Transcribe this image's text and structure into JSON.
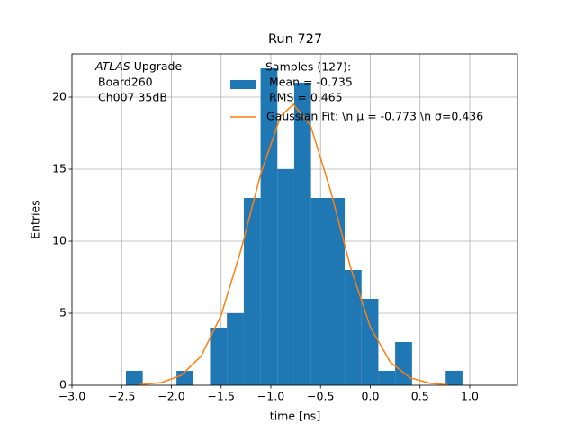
{
  "chart_data": {
    "type": "histogram",
    "title": "Run 727",
    "xlabel": "time [ns]",
    "ylabel": "Entries",
    "bins": [
      -2.457,
      -2.288,
      -2.119,
      -1.949,
      -1.78,
      -1.611,
      -1.442,
      -1.272,
      -1.103,
      -0.934,
      -0.765,
      -0.596,
      -0.426,
      -0.257,
      -0.088,
      0.081,
      0.25,
      0.42,
      0.589,
      0.758,
      0.927
    ],
    "values": [
      1,
      0,
      0,
      1,
      0,
      4,
      5,
      13,
      22,
      15,
      21,
      13,
      13,
      8,
      6,
      1,
      3,
      0,
      0,
      1
    ],
    "name": "Samples (127):",
    "details": [
      "Mean = -0.735",
      "RMS = 0.465"
    ],
    "color": "#1f77b4",
    "fit": {
      "name": "Gaussian Fit: \\n μ = -0.773 \\n σ=0.436",
      "color": "#ff7f0e",
      "x": [
        -2.33,
        -2.1,
        -1.9,
        -1.7,
        -1.5,
        -1.3,
        -1.1,
        -0.9,
        -0.773,
        -0.6,
        -0.4,
        -0.2,
        0.0,
        0.2,
        0.4,
        0.6,
        0.78
      ],
      "values": [
        0.03,
        0.19,
        0.69,
        2.03,
        4.86,
        9.39,
        14.72,
        18.69,
        19.5,
        18.02,
        13.53,
        8.22,
        4.05,
        1.62,
        0.52,
        0.14,
        0.03
      ]
    },
    "annotation": {
      "emphasis": "ATLAS",
      "lines": [
        "Upgrade",
        "Board260",
        "Ch007 35dB"
      ]
    },
    "xlim": [
      -3.0,
      1.48
    ],
    "ylim": [
      0,
      23.0
    ],
    "xticks": [
      {
        "value": -3.0,
        "label": "−3.0"
      },
      {
        "value": -2.5,
        "label": "−2.5"
      },
      {
        "value": -2.0,
        "label": "−2.0"
      },
      {
        "value": -1.5,
        "label": "−1.5"
      },
      {
        "value": -1.0,
        "label": "−1.0"
      },
      {
        "value": -0.5,
        "label": "−0.5"
      },
      {
        "value": 0.0,
        "label": "0.0"
      },
      {
        "value": 0.5,
        "label": "0.5"
      },
      {
        "value": 1.0,
        "label": "1.0"
      }
    ],
    "yticks": [
      0,
      5,
      10,
      15,
      20
    ],
    "grid": true,
    "legend": "upper center"
  }
}
